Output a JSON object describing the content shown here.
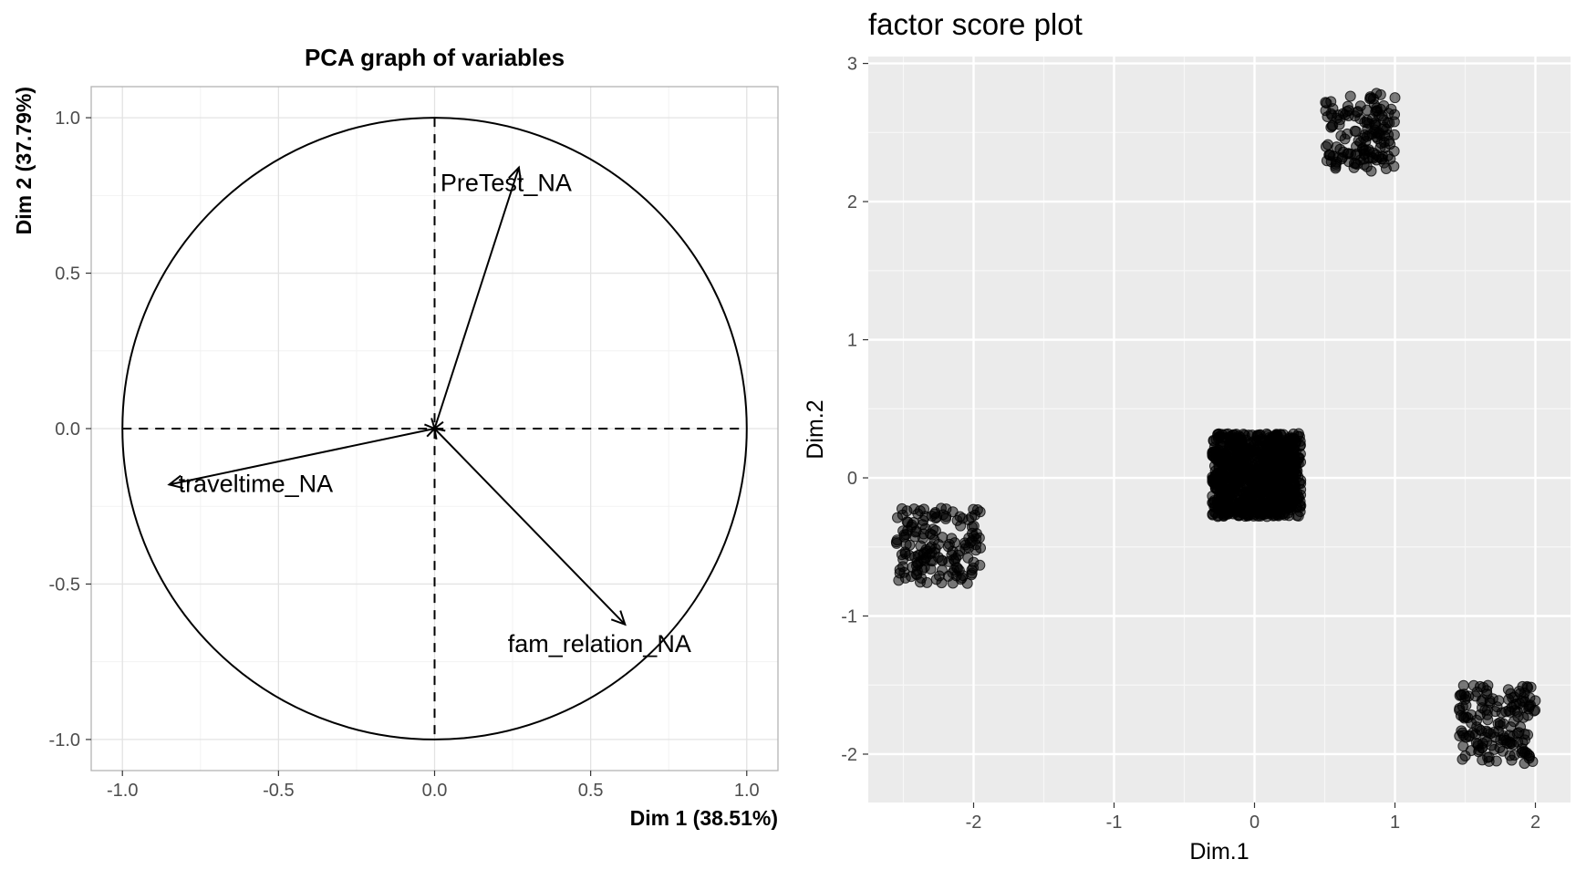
{
  "chart_data": [
    {
      "type": "line",
      "subtype": "pca-correlation-circle",
      "title": "PCA graph of variables",
      "xlabel": "Dim 1 (38.51%)",
      "ylabel": "Dim 2 (37.79%)",
      "xlim": [
        -1.1,
        1.1
      ],
      "ylim": [
        -1.1,
        1.1
      ],
      "xticks": [
        -1.0,
        -0.5,
        0.0,
        0.5,
        1.0
      ],
      "yticks": [
        -1.0,
        -0.5,
        0.0,
        0.5,
        1.0
      ],
      "xtick_labels": [
        "-1.0",
        "-0.5",
        "0.0",
        "0.5",
        "1.0"
      ],
      "ytick_labels": [
        "-1.0",
        "-0.5",
        "0.0",
        "0.5",
        "1.0"
      ],
      "grid": true,
      "unit_circle": true,
      "variables": [
        {
          "name": "PreTest_NA",
          "x": 0.27,
          "y": 0.84
        },
        {
          "name": "traveltime_NA",
          "x": -0.85,
          "y": -0.18
        },
        {
          "name": "fam_relation_NA",
          "x": 0.61,
          "y": -0.63
        }
      ]
    },
    {
      "type": "scatter",
      "title": "factor score plot",
      "xlabel": "Dim.1",
      "ylabel": "Dim.2",
      "xlim": [
        -2.75,
        2.25
      ],
      "ylim": [
        -2.35,
        3.05
      ],
      "xticks": [
        -2,
        -1,
        0,
        1,
        2
      ],
      "yticks": [
        -2,
        -1,
        0,
        1,
        2,
        3
      ],
      "xtick_labels": [
        "-2",
        "-1",
        "0",
        "1",
        "2"
      ],
      "ytick_labels": [
        "-2",
        "-1",
        "0",
        "1",
        "2",
        "3"
      ],
      "grid": true,
      "point_color": "#000000",
      "point_alpha": 0.5,
      "clusters": [
        {
          "center": [
            0.0,
            0.0
          ],
          "x_range": [
            -0.3,
            0.33
          ],
          "y_range": [
            -0.28,
            0.32
          ],
          "count": 900
        },
        {
          "center": [
            0.75,
            2.5
          ],
          "x_range": [
            0.5,
            1.0
          ],
          "y_range": [
            2.22,
            2.8
          ],
          "count": 150
        },
        {
          "center": [
            -2.25,
            -0.5
          ],
          "x_range": [
            -2.55,
            -1.95
          ],
          "y_range": [
            -0.78,
            -0.22
          ],
          "count": 160
        },
        {
          "center": [
            1.75,
            -1.8
          ],
          "x_range": [
            1.45,
            2.0
          ],
          "y_range": [
            -2.07,
            -1.5
          ],
          "count": 160
        }
      ]
    }
  ]
}
